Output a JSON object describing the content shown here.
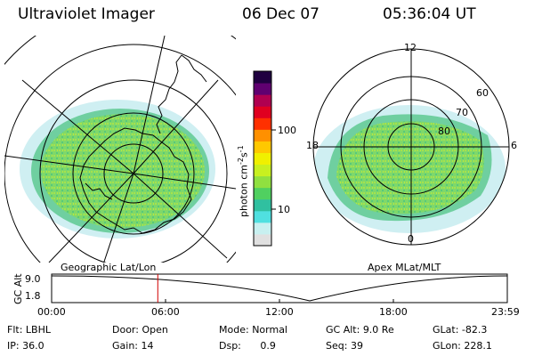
{
  "header": {
    "instrument": "Ultraviolet Imager",
    "date": "06 Dec 07",
    "time": "05:36:04 UT"
  },
  "left_panel": {
    "label": "Geographic Lat/Lon"
  },
  "right_panel": {
    "label": "Apex MLat/MLT",
    "mlt_labels": {
      "top": "12",
      "left": "18",
      "right": "6",
      "bottom": "0"
    },
    "lat_labels": [
      "60",
      "70",
      "80"
    ]
  },
  "colorbar": {
    "unit_prefix": "photon cm",
    "unit_exp1": "-2",
    "unit_mid": "s",
    "unit_exp2": "-1",
    "ticks": [
      "100",
      "10"
    ],
    "colors": [
      "#e0e0e0",
      "#c8f0f0",
      "#50e0e0",
      "#30c0a0",
      "#50d060",
      "#90e040",
      "#c8f020",
      "#f0f000",
      "#ffc800",
      "#ff9000",
      "#ff3000",
      "#e00020",
      "#b00050",
      "#600070",
      "#200040"
    ]
  },
  "altitude_plot": {
    "ylabel": "GC Alt",
    "y_ticks": [
      "9.0",
      "1.8"
    ],
    "x_ticks": [
      "00:00",
      "06:00",
      "12:00",
      "18:00",
      "23:59"
    ],
    "current_time_fraction": 0.233
  },
  "params": {
    "row1": [
      {
        "label": "Flt:",
        "value": "LBHL"
      },
      {
        "label": "Door:",
        "value": "Open"
      },
      {
        "label": "Mode:",
        "value": "Normal"
      },
      {
        "label": "GC Alt:",
        "value": "9.0 Re"
      },
      {
        "label": "GLat:",
        "value": "-82.3"
      }
    ],
    "row2": [
      {
        "label": "IP:",
        "value": "36.0"
      },
      {
        "label": "Gain:",
        "value": "14"
      },
      {
        "label": "Dsp:",
        "value": "0.9"
      },
      {
        "label": "Seq:",
        "value": "39"
      },
      {
        "label": "GLon:",
        "value": "228.1"
      }
    ]
  }
}
